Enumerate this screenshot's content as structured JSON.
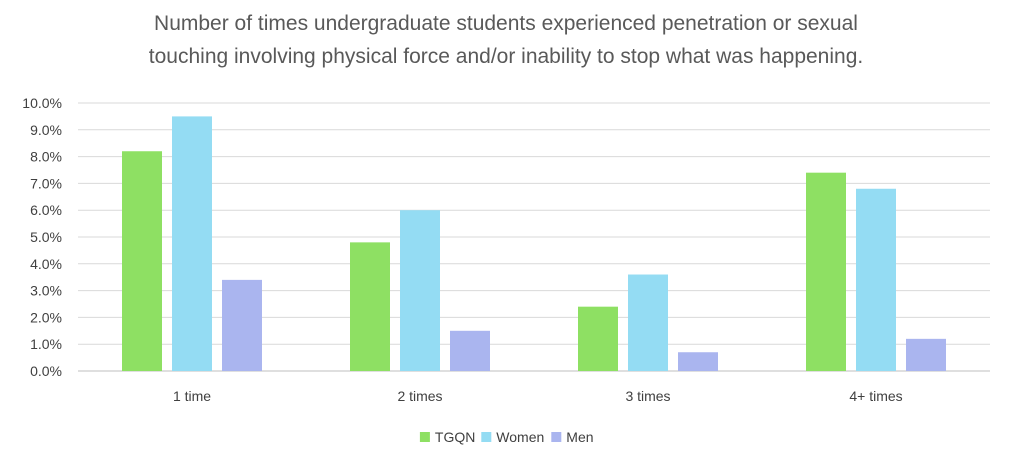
{
  "chart_data": {
    "type": "bar",
    "title_lines": [
      "Number of times undergraduate students experienced penetration or sexual",
      "touching involving physical force and/or inability to stop what was happening."
    ],
    "categories": [
      "1 time",
      "2 times",
      "3 times",
      "4+ times"
    ],
    "series": [
      {
        "name": "TGQN",
        "color": "#8ee063",
        "values": [
          8.2,
          4.8,
          2.4,
          7.4
        ]
      },
      {
        "name": "Women",
        "color": "#94dcf3",
        "values": [
          9.5,
          6.0,
          3.6,
          6.8
        ]
      },
      {
        "name": "Men",
        "color": "#aab5ef",
        "values": [
          3.4,
          1.5,
          0.7,
          1.2
        ]
      }
    ],
    "ylim": [
      0,
      10
    ],
    "yticks": [
      "0.0%",
      "1.0%",
      "2.0%",
      "3.0%",
      "4.0%",
      "5.0%",
      "6.0%",
      "7.0%",
      "8.0%",
      "9.0%",
      "10.0%"
    ],
    "xlabel": "",
    "ylabel": "",
    "grid": true,
    "legend_position": "bottom"
  }
}
